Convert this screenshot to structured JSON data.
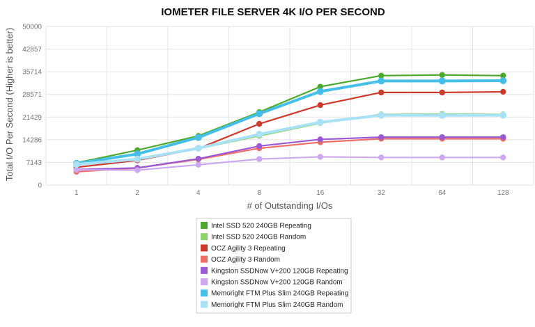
{
  "chart_data": {
    "type": "line",
    "title": "IOMETER FILE SERVER 4K I/O PER SECOND",
    "xlabel": "# of Outstanding I/Os",
    "ylabel": "Total I/O Per Second (Higher is better)",
    "categories": [
      "1",
      "2",
      "4",
      "8",
      "16",
      "32",
      "64",
      "128"
    ],
    "y_ticks": [
      "0",
      "7143",
      "14286",
      "21429",
      "28571",
      "35714",
      "42857",
      "50000"
    ],
    "ylim": [
      0,
      50000
    ],
    "grid": true,
    "legend_position": "bottom",
    "series": [
      {
        "name": "Intel SSD 520 240GB Repeating",
        "color": "#4fa82e",
        "values": [
          7000,
          11000,
          15500,
          23000,
          31000,
          34500,
          34700,
          34500
        ]
      },
      {
        "name": "Intel SSD 520 240GB Random",
        "color": "#8ed36a",
        "values": [
          6800,
          8000,
          11500,
          15500,
          19500,
          22300,
          22400,
          22300
        ]
      },
      {
        "name": "OCZ Agility 3 Repeating",
        "color": "#cc3a2d",
        "values": [
          5600,
          7800,
          11500,
          19300,
          25200,
          29200,
          29200,
          29400
        ]
      },
      {
        "name": "OCZ Agility 3 Random",
        "color": "#ee6f66",
        "values": [
          4200,
          5400,
          8100,
          11600,
          13500,
          14600,
          14600,
          14600
        ]
      },
      {
        "name": "Kingston SSDNow V+200 120GB Repeating",
        "color": "#9a5ad6",
        "values": [
          4900,
          5400,
          8300,
          12300,
          14400,
          15100,
          15100,
          15100
        ]
      },
      {
        "name": "Kingston SSDNow V+200 120GB Random",
        "color": "#cda8f0",
        "values": [
          4800,
          4700,
          6400,
          8200,
          8900,
          8700,
          8700,
          8700
        ]
      },
      {
        "name": "Memoright FTM Plus Slim 240GB Repeating",
        "color": "#45bfe8",
        "values": [
          6800,
          9800,
          15000,
          22500,
          29500,
          32800,
          32800,
          32900
        ]
      },
      {
        "name": "Memoright FTM Plus Slim 240GB Random",
        "color": "#a9e2f6",
        "values": [
          6500,
          8200,
          11600,
          16000,
          19800,
          22000,
          22000,
          22000
        ]
      }
    ]
  }
}
